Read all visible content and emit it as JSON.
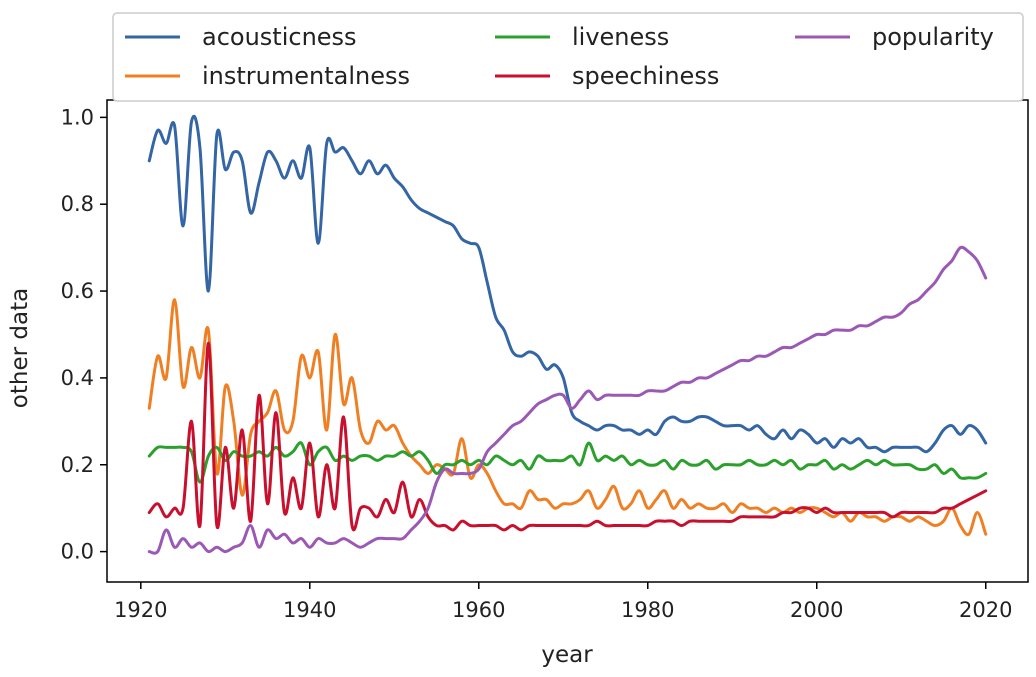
{
  "chart_data": {
    "type": "line",
    "title": "",
    "xlabel": "year",
    "ylabel": "other data",
    "xlim": [
      1916,
      2025
    ],
    "ylim": [
      -0.07,
      1.04
    ],
    "xticks": [
      1920,
      1940,
      1960,
      1980,
      2000,
      2020
    ],
    "yticks": [
      0.0,
      0.2,
      0.4,
      0.6,
      0.8,
      1.0
    ],
    "ytick_labels": [
      "0.0",
      "0.2",
      "0.4",
      "0.6",
      "0.8",
      "1.0"
    ],
    "grid": false,
    "legend": {
      "position": "top",
      "columns": 3
    },
    "x": [
      1921,
      1922,
      1923,
      1924,
      1925,
      1926,
      1927,
      1928,
      1929,
      1930,
      1931,
      1932,
      1933,
      1934,
      1935,
      1936,
      1937,
      1938,
      1939,
      1940,
      1941,
      1942,
      1943,
      1944,
      1945,
      1946,
      1947,
      1948,
      1949,
      1950,
      1951,
      1952,
      1953,
      1954,
      1955,
      1956,
      1957,
      1958,
      1959,
      1960,
      1961,
      1962,
      1963,
      1964,
      1965,
      1966,
      1967,
      1968,
      1969,
      1970,
      1971,
      1972,
      1973,
      1974,
      1975,
      1976,
      1977,
      1978,
      1979,
      1980,
      1981,
      1982,
      1983,
      1984,
      1985,
      1986,
      1987,
      1988,
      1989,
      1990,
      1991,
      1992,
      1993,
      1994,
      1995,
      1996,
      1997,
      1998,
      1999,
      2000,
      2001,
      2002,
      2003,
      2004,
      2005,
      2006,
      2007,
      2008,
      2009,
      2010,
      2011,
      2012,
      2013,
      2014,
      2015,
      2016,
      2017,
      2018,
      2019,
      2020
    ],
    "series": [
      {
        "name": "acousticness",
        "color": "#3465a4",
        "values": [
          0.9,
          0.97,
          0.94,
          0.98,
          0.75,
          0.99,
          0.93,
          0.6,
          0.96,
          0.88,
          0.92,
          0.9,
          0.78,
          0.85,
          0.92,
          0.9,
          0.86,
          0.9,
          0.86,
          0.93,
          0.71,
          0.94,
          0.92,
          0.93,
          0.9,
          0.87,
          0.9,
          0.87,
          0.89,
          0.86,
          0.84,
          0.81,
          0.79,
          0.78,
          0.77,
          0.76,
          0.75,
          0.72,
          0.71,
          0.7,
          0.62,
          0.54,
          0.51,
          0.46,
          0.45,
          0.46,
          0.45,
          0.42,
          0.43,
          0.4,
          0.32,
          0.3,
          0.29,
          0.28,
          0.29,
          0.29,
          0.28,
          0.28,
          0.27,
          0.28,
          0.27,
          0.3,
          0.31,
          0.3,
          0.3,
          0.31,
          0.31,
          0.3,
          0.29,
          0.29,
          0.29,
          0.28,
          0.29,
          0.27,
          0.26,
          0.28,
          0.26,
          0.28,
          0.27,
          0.25,
          0.26,
          0.24,
          0.26,
          0.25,
          0.26,
          0.24,
          0.24,
          0.23,
          0.24,
          0.24,
          0.24,
          0.24,
          0.23,
          0.25,
          0.28,
          0.29,
          0.27,
          0.29,
          0.28,
          0.25
        ]
      },
      {
        "name": "instrumentalness",
        "color": "#f07f23",
        "values": [
          0.33,
          0.45,
          0.4,
          0.58,
          0.38,
          0.47,
          0.4,
          0.51,
          0.18,
          0.38,
          0.3,
          0.13,
          0.27,
          0.3,
          0.32,
          0.37,
          0.28,
          0.3,
          0.45,
          0.4,
          0.46,
          0.28,
          0.5,
          0.34,
          0.4,
          0.28,
          0.25,
          0.3,
          0.28,
          0.29,
          0.25,
          0.22,
          0.2,
          0.18,
          0.2,
          0.19,
          0.18,
          0.26,
          0.17,
          0.2,
          0.18,
          0.14,
          0.11,
          0.11,
          0.1,
          0.14,
          0.12,
          0.12,
          0.1,
          0.11,
          0.11,
          0.12,
          0.14,
          0.1,
          0.12,
          0.15,
          0.1,
          0.11,
          0.14,
          0.1,
          0.12,
          0.14,
          0.1,
          0.12,
          0.1,
          0.11,
          0.1,
          0.1,
          0.11,
          0.09,
          0.11,
          0.1,
          0.1,
          0.09,
          0.1,
          0.09,
          0.1,
          0.09,
          0.1,
          0.1,
          0.09,
          0.08,
          0.09,
          0.07,
          0.09,
          0.08,
          0.08,
          0.07,
          0.08,
          0.08,
          0.07,
          0.08,
          0.07,
          0.06,
          0.07,
          0.1,
          0.06,
          0.04,
          0.09,
          0.04
        ]
      },
      {
        "name": "liveness",
        "color": "#2ca02c",
        "values": [
          0.22,
          0.24,
          0.24,
          0.24,
          0.24,
          0.23,
          0.16,
          0.22,
          0.24,
          0.21,
          0.23,
          0.22,
          0.22,
          0.23,
          0.22,
          0.24,
          0.22,
          0.23,
          0.25,
          0.2,
          0.23,
          0.24,
          0.21,
          0.22,
          0.21,
          0.22,
          0.22,
          0.21,
          0.22,
          0.22,
          0.23,
          0.22,
          0.23,
          0.21,
          0.18,
          0.2,
          0.2,
          0.21,
          0.2,
          0.21,
          0.2,
          0.22,
          0.21,
          0.2,
          0.21,
          0.19,
          0.22,
          0.21,
          0.21,
          0.21,
          0.22,
          0.2,
          0.25,
          0.21,
          0.22,
          0.21,
          0.22,
          0.2,
          0.21,
          0.2,
          0.2,
          0.21,
          0.19,
          0.21,
          0.2,
          0.2,
          0.21,
          0.19,
          0.2,
          0.2,
          0.2,
          0.21,
          0.2,
          0.2,
          0.21,
          0.2,
          0.21,
          0.19,
          0.2,
          0.2,
          0.21,
          0.19,
          0.2,
          0.19,
          0.2,
          0.21,
          0.2,
          0.21,
          0.2,
          0.2,
          0.2,
          0.19,
          0.19,
          0.2,
          0.18,
          0.19,
          0.17,
          0.17,
          0.17,
          0.18
        ]
      },
      {
        "name": "speechiness",
        "color": "#c8102e",
        "values": [
          0.09,
          0.11,
          0.08,
          0.1,
          0.1,
          0.3,
          0.06,
          0.48,
          0.06,
          0.24,
          0.1,
          0.28,
          0.07,
          0.36,
          0.11,
          0.32,
          0.09,
          0.17,
          0.1,
          0.25,
          0.08,
          0.2,
          0.1,
          0.31,
          0.06,
          0.1,
          0.1,
          0.08,
          0.12,
          0.09,
          0.16,
          0.08,
          0.12,
          0.08,
          0.06,
          0.06,
          0.05,
          0.07,
          0.06,
          0.06,
          0.06,
          0.06,
          0.05,
          0.06,
          0.05,
          0.06,
          0.06,
          0.06,
          0.06,
          0.06,
          0.06,
          0.06,
          0.06,
          0.07,
          0.06,
          0.06,
          0.06,
          0.06,
          0.06,
          0.06,
          0.07,
          0.07,
          0.07,
          0.06,
          0.07,
          0.07,
          0.07,
          0.07,
          0.07,
          0.07,
          0.08,
          0.08,
          0.08,
          0.08,
          0.08,
          0.09,
          0.09,
          0.1,
          0.1,
          0.09,
          0.1,
          0.09,
          0.09,
          0.09,
          0.09,
          0.09,
          0.09,
          0.09,
          0.08,
          0.09,
          0.09,
          0.09,
          0.09,
          0.09,
          0.1,
          0.1,
          0.11,
          0.12,
          0.13,
          0.14
        ]
      },
      {
        "name": "popularity",
        "color": "#9b59b6",
        "values": [
          0.0,
          0.0,
          0.05,
          0.01,
          0.03,
          0.01,
          0.02,
          0.0,
          0.01,
          0.0,
          0.01,
          0.02,
          0.06,
          0.01,
          0.05,
          0.03,
          0.04,
          0.02,
          0.03,
          0.01,
          0.03,
          0.02,
          0.02,
          0.03,
          0.02,
          0.01,
          0.02,
          0.03,
          0.03,
          0.03,
          0.03,
          0.05,
          0.07,
          0.1,
          0.16,
          0.19,
          0.18,
          0.18,
          0.18,
          0.19,
          0.23,
          0.25,
          0.27,
          0.29,
          0.3,
          0.32,
          0.34,
          0.35,
          0.36,
          0.36,
          0.33,
          0.35,
          0.37,
          0.35,
          0.36,
          0.36,
          0.36,
          0.36,
          0.36,
          0.37,
          0.37,
          0.37,
          0.38,
          0.39,
          0.39,
          0.4,
          0.4,
          0.41,
          0.42,
          0.43,
          0.44,
          0.44,
          0.45,
          0.45,
          0.46,
          0.47,
          0.47,
          0.48,
          0.49,
          0.5,
          0.5,
          0.51,
          0.51,
          0.51,
          0.52,
          0.52,
          0.53,
          0.54,
          0.54,
          0.55,
          0.57,
          0.58,
          0.6,
          0.62,
          0.65,
          0.67,
          0.7,
          0.69,
          0.67,
          0.63
        ]
      }
    ]
  }
}
